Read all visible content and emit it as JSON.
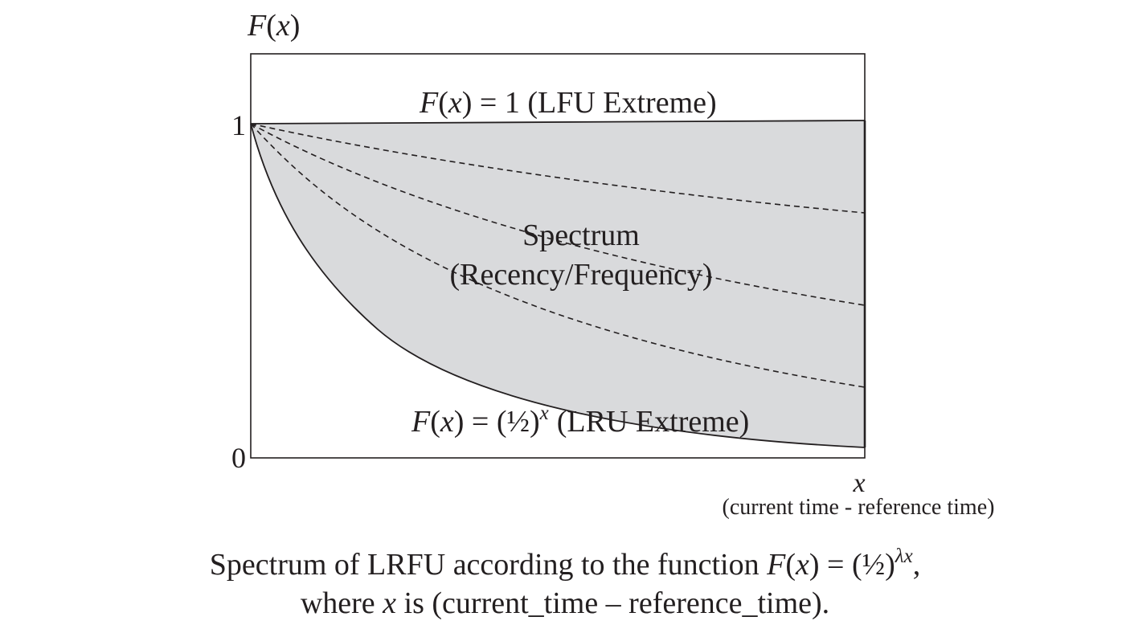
{
  "diagram": {
    "y_axis_label": {
      "fn": "F",
      "var": "x"
    },
    "tick_top": "1",
    "tick_bottom": "0",
    "lfu_label": {
      "fn": "F",
      "var": "x",
      "rest": "= 1 (LFU Extreme)"
    },
    "spectrum_line1": "Spectrum",
    "spectrum_line2": "(Recency/Frequency)",
    "lru_label": {
      "fn": "F",
      "var": "x",
      "eq": "= (½)",
      "sup": "x",
      "rest": "(LRU Extreme)"
    },
    "x_axis_label": "x",
    "x_axis_sublabel": "(current time - reference time)",
    "dashed_curve_count": 3,
    "colors": {
      "shade": "#d9dadc",
      "ink": "#231f20",
      "background": "#ffffff"
    }
  },
  "caption": {
    "line1_pre": "Spectrum of LRFU according to the function",
    "fn": "F",
    "var": "x",
    "eq": "= (½)",
    "sup": "λx",
    "comma": ",",
    "line2_pre": "where",
    "line2_var": "x",
    "line2_post": "is (current_time – reference_time)."
  }
}
